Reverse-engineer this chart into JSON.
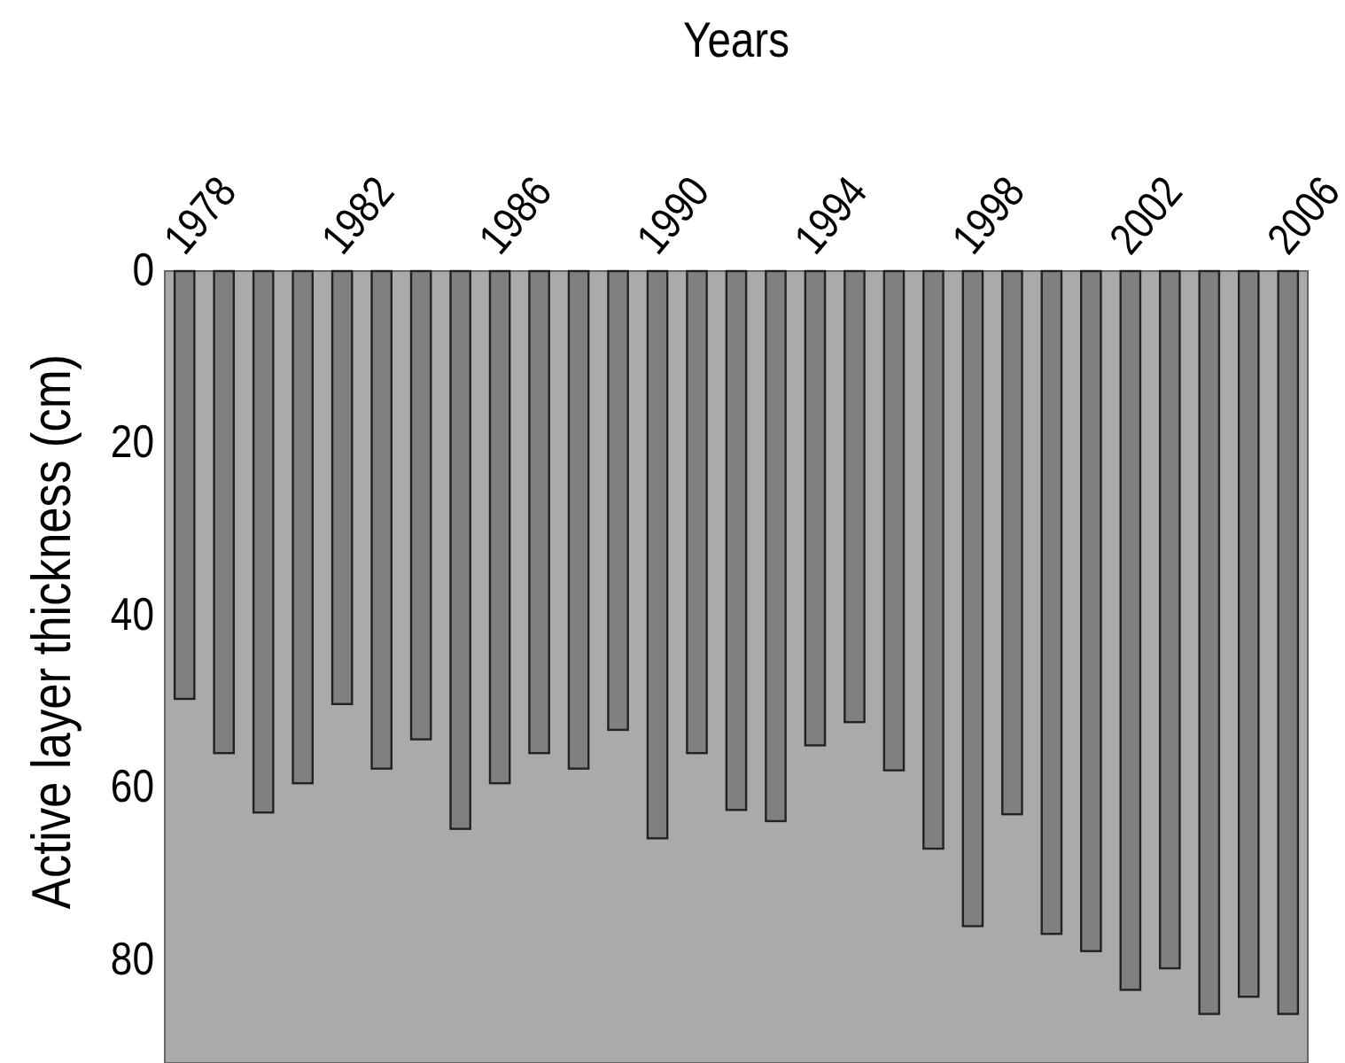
{
  "chart_data": {
    "type": "bar",
    "xlabel": "Years",
    "ylabel": "Active layer thickness (cm)",
    "categories": [
      "1978",
      null,
      null,
      null,
      "1982",
      null,
      null,
      null,
      "1986",
      null,
      null,
      null,
      "1990",
      null,
      null,
      null,
      "1994",
      null,
      null,
      null,
      "1998",
      null,
      null,
      null,
      "2002",
      null,
      null,
      null,
      "2006"
    ],
    "values": [
      49.7,
      56.0,
      62.9,
      59.5,
      50.3,
      57.8,
      54.4,
      64.8,
      59.5,
      56.0,
      57.8,
      53.3,
      65.9,
      56.0,
      62.6,
      63.9,
      55.1,
      52.4,
      58.0,
      67.1,
      76.1,
      63.1,
      77.0,
      79.0,
      83.5,
      81.0,
      86.3,
      84.3,
      86.3
    ],
    "color": "#808080",
    "ylim": [
      92,
      0
    ],
    "yticks": [
      0,
      20,
      40,
      60,
      80
    ],
    "grid": false
  }
}
